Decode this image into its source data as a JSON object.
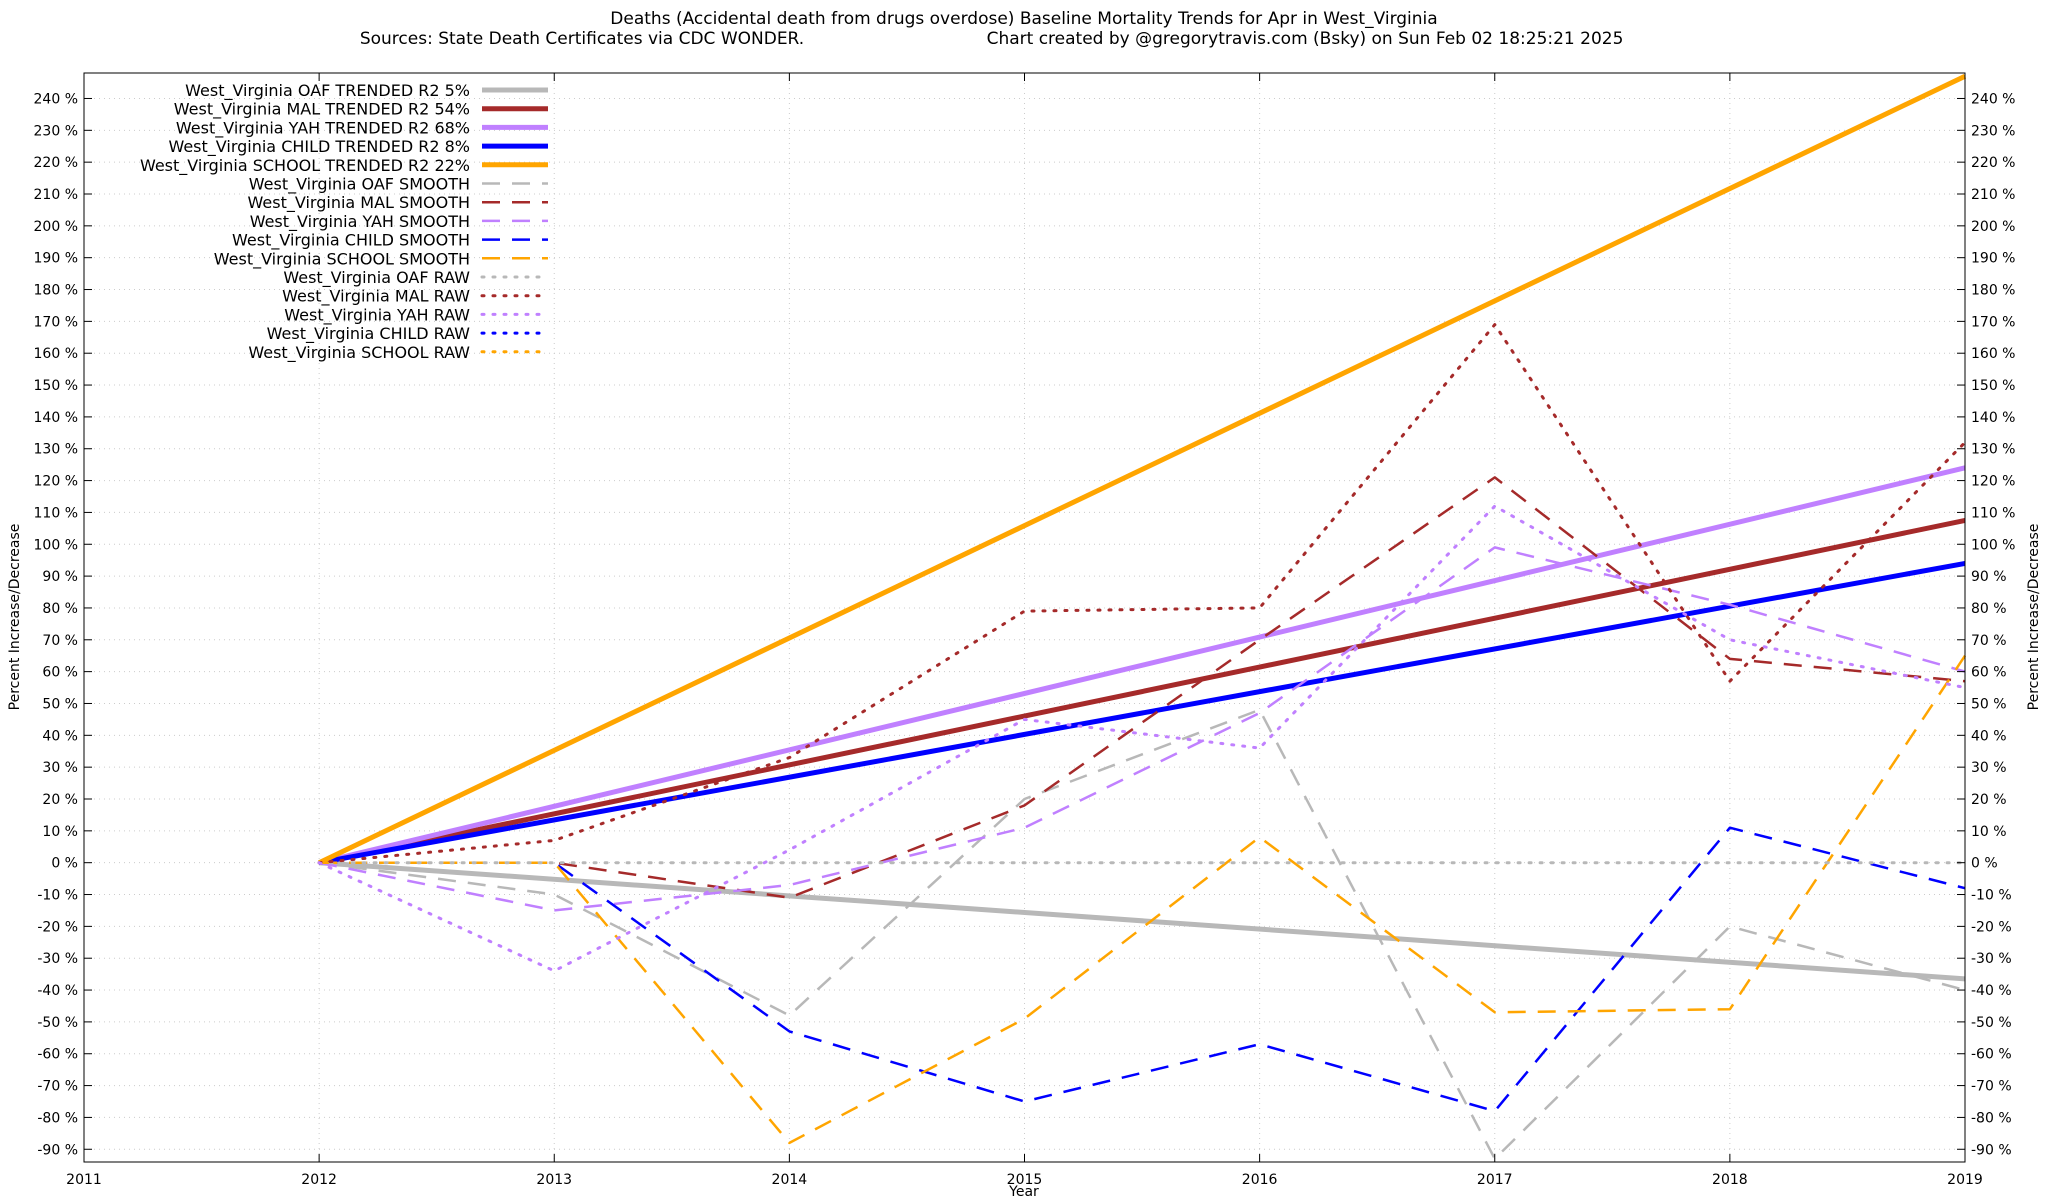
{
  "chart_data": {
    "type": "line",
    "title": "Deaths (Accidental death from drugs overdose)  Baseline Mortality Trends for Apr in West_Virginia",
    "subtitle_left": "Sources: State Death Certificates via CDC WONDER.",
    "subtitle_right": "Chart created by @gregorytravis.com (Bsky) on Sun Feb 02 18:25:21 2025",
    "xlabel": "Year",
    "ylabel": "Percent Increase/Decrease",
    "y2label": "Percent Increase/Decrease",
    "xlim": [
      2011,
      2019
    ],
    "ylim": [
      -94,
      248
    ],
    "x_ticks": [
      2011,
      2012,
      2013,
      2014,
      2015,
      2016,
      2017,
      2018,
      2019
    ],
    "y_ticks": [
      -90,
      -80,
      -70,
      -60,
      -50,
      -40,
      -30,
      -20,
      -10,
      0,
      10,
      20,
      30,
      40,
      50,
      60,
      70,
      80,
      90,
      100,
      110,
      120,
      130,
      140,
      150,
      160,
      170,
      180,
      190,
      200,
      210,
      220,
      230,
      240
    ],
    "y_tick_suffix": " %",
    "grid": true,
    "legend_position": "top-left",
    "series": [
      {
        "name": "West_Virginia OAF TRENDED R2  5%",
        "style": "solid",
        "color": "#b8b8b8",
        "x": [
          2012,
          2019
        ],
        "y": [
          0,
          -36.5
        ]
      },
      {
        "name": "West_Virginia MAL TRENDED R2  54%",
        "style": "solid",
        "color": "#a52a2a",
        "x": [
          2012,
          2019
        ],
        "y": [
          0,
          107.5
        ]
      },
      {
        "name": "West_Virginia YAH TRENDED R2  68%",
        "style": "solid",
        "color": "#c080ff",
        "x": [
          2012,
          2019
        ],
        "y": [
          0,
          124
        ]
      },
      {
        "name": "West_Virginia CHILD TRENDED R2  8%",
        "style": "solid",
        "color": "#0000ff",
        "x": [
          2012,
          2019
        ],
        "y": [
          0,
          94
        ]
      },
      {
        "name": "West_Virginia SCHOOL TRENDED R2  22%",
        "style": "solid",
        "color": "#ffa500",
        "x": [
          2012,
          2019
        ],
        "y": [
          0,
          247
        ]
      },
      {
        "name": "West_Virginia OAF SMOOTH",
        "style": "dashed",
        "color": "#b8b8b8",
        "x": [
          2012,
          2013,
          2014,
          2015,
          2016,
          2017,
          2018,
          2019
        ],
        "y": [
          0,
          -10,
          -48,
          20,
          48,
          -93,
          -20,
          -40
        ]
      },
      {
        "name": "West_Virginia MAL SMOOTH",
        "style": "dashed",
        "color": "#a52a2a",
        "x": [
          2012,
          2013,
          2014,
          2015,
          2016,
          2017,
          2018,
          2019
        ],
        "y": [
          0,
          0,
          -11,
          18,
          70,
          121,
          64,
          57
        ]
      },
      {
        "name": "West_Virginia YAH SMOOTH",
        "style": "dashed",
        "color": "#c080ff",
        "x": [
          2012,
          2013,
          2014,
          2015,
          2016,
          2017,
          2018,
          2019
        ],
        "y": [
          0,
          -15,
          -7,
          11,
          47,
          99,
          81,
          60
        ]
      },
      {
        "name": "West_Virginia CHILD SMOOTH",
        "style": "dashed",
        "color": "#0000ff",
        "x": [
          2012,
          2013,
          2014,
          2015,
          2016,
          2017,
          2018,
          2019
        ],
        "y": [
          0,
          0,
          -53,
          -75,
          -57,
          -78,
          11,
          -8
        ]
      },
      {
        "name": "West_Virginia SCHOOL SMOOTH",
        "style": "dashed",
        "color": "#ffa500",
        "x": [
          2012,
          2013,
          2014,
          2015,
          2016,
          2017,
          2018,
          2019
        ],
        "y": [
          0,
          0,
          -88,
          -49,
          8,
          -47,
          -46,
          65
        ]
      },
      {
        "name": "West_Virginia OAF RAW",
        "style": "dotted",
        "color": "#b8b8b8",
        "x": [
          2012,
          2013,
          2014,
          2015,
          2016,
          2017,
          2018,
          2019
        ],
        "y": [
          0,
          0,
          0,
          0,
          0,
          0,
          0,
          0
        ]
      },
      {
        "name": "West_Virginia MAL RAW",
        "style": "dotted",
        "color": "#a52a2a",
        "x": [
          2012,
          2013,
          2014,
          2015,
          2016,
          2017,
          2018,
          2019
        ],
        "y": [
          0,
          7,
          33,
          79,
          80,
          169,
          57,
          132
        ]
      },
      {
        "name": "West_Virginia YAH RAW",
        "style": "dotted",
        "color": "#c080ff",
        "x": [
          2012,
          2013,
          2014,
          2015,
          2016,
          2017,
          2018,
          2019
        ],
        "y": [
          0,
          -34,
          4,
          45,
          36,
          112,
          70,
          55
        ]
      },
      {
        "name": "West_Virginia CHILD RAW",
        "style": "dotted",
        "color": "#0000ff",
        "x": [],
        "y": []
      },
      {
        "name": "West_Virginia SCHOOL RAW",
        "style": "dotted",
        "color": "#ffa500",
        "x": [],
        "y": []
      }
    ]
  }
}
